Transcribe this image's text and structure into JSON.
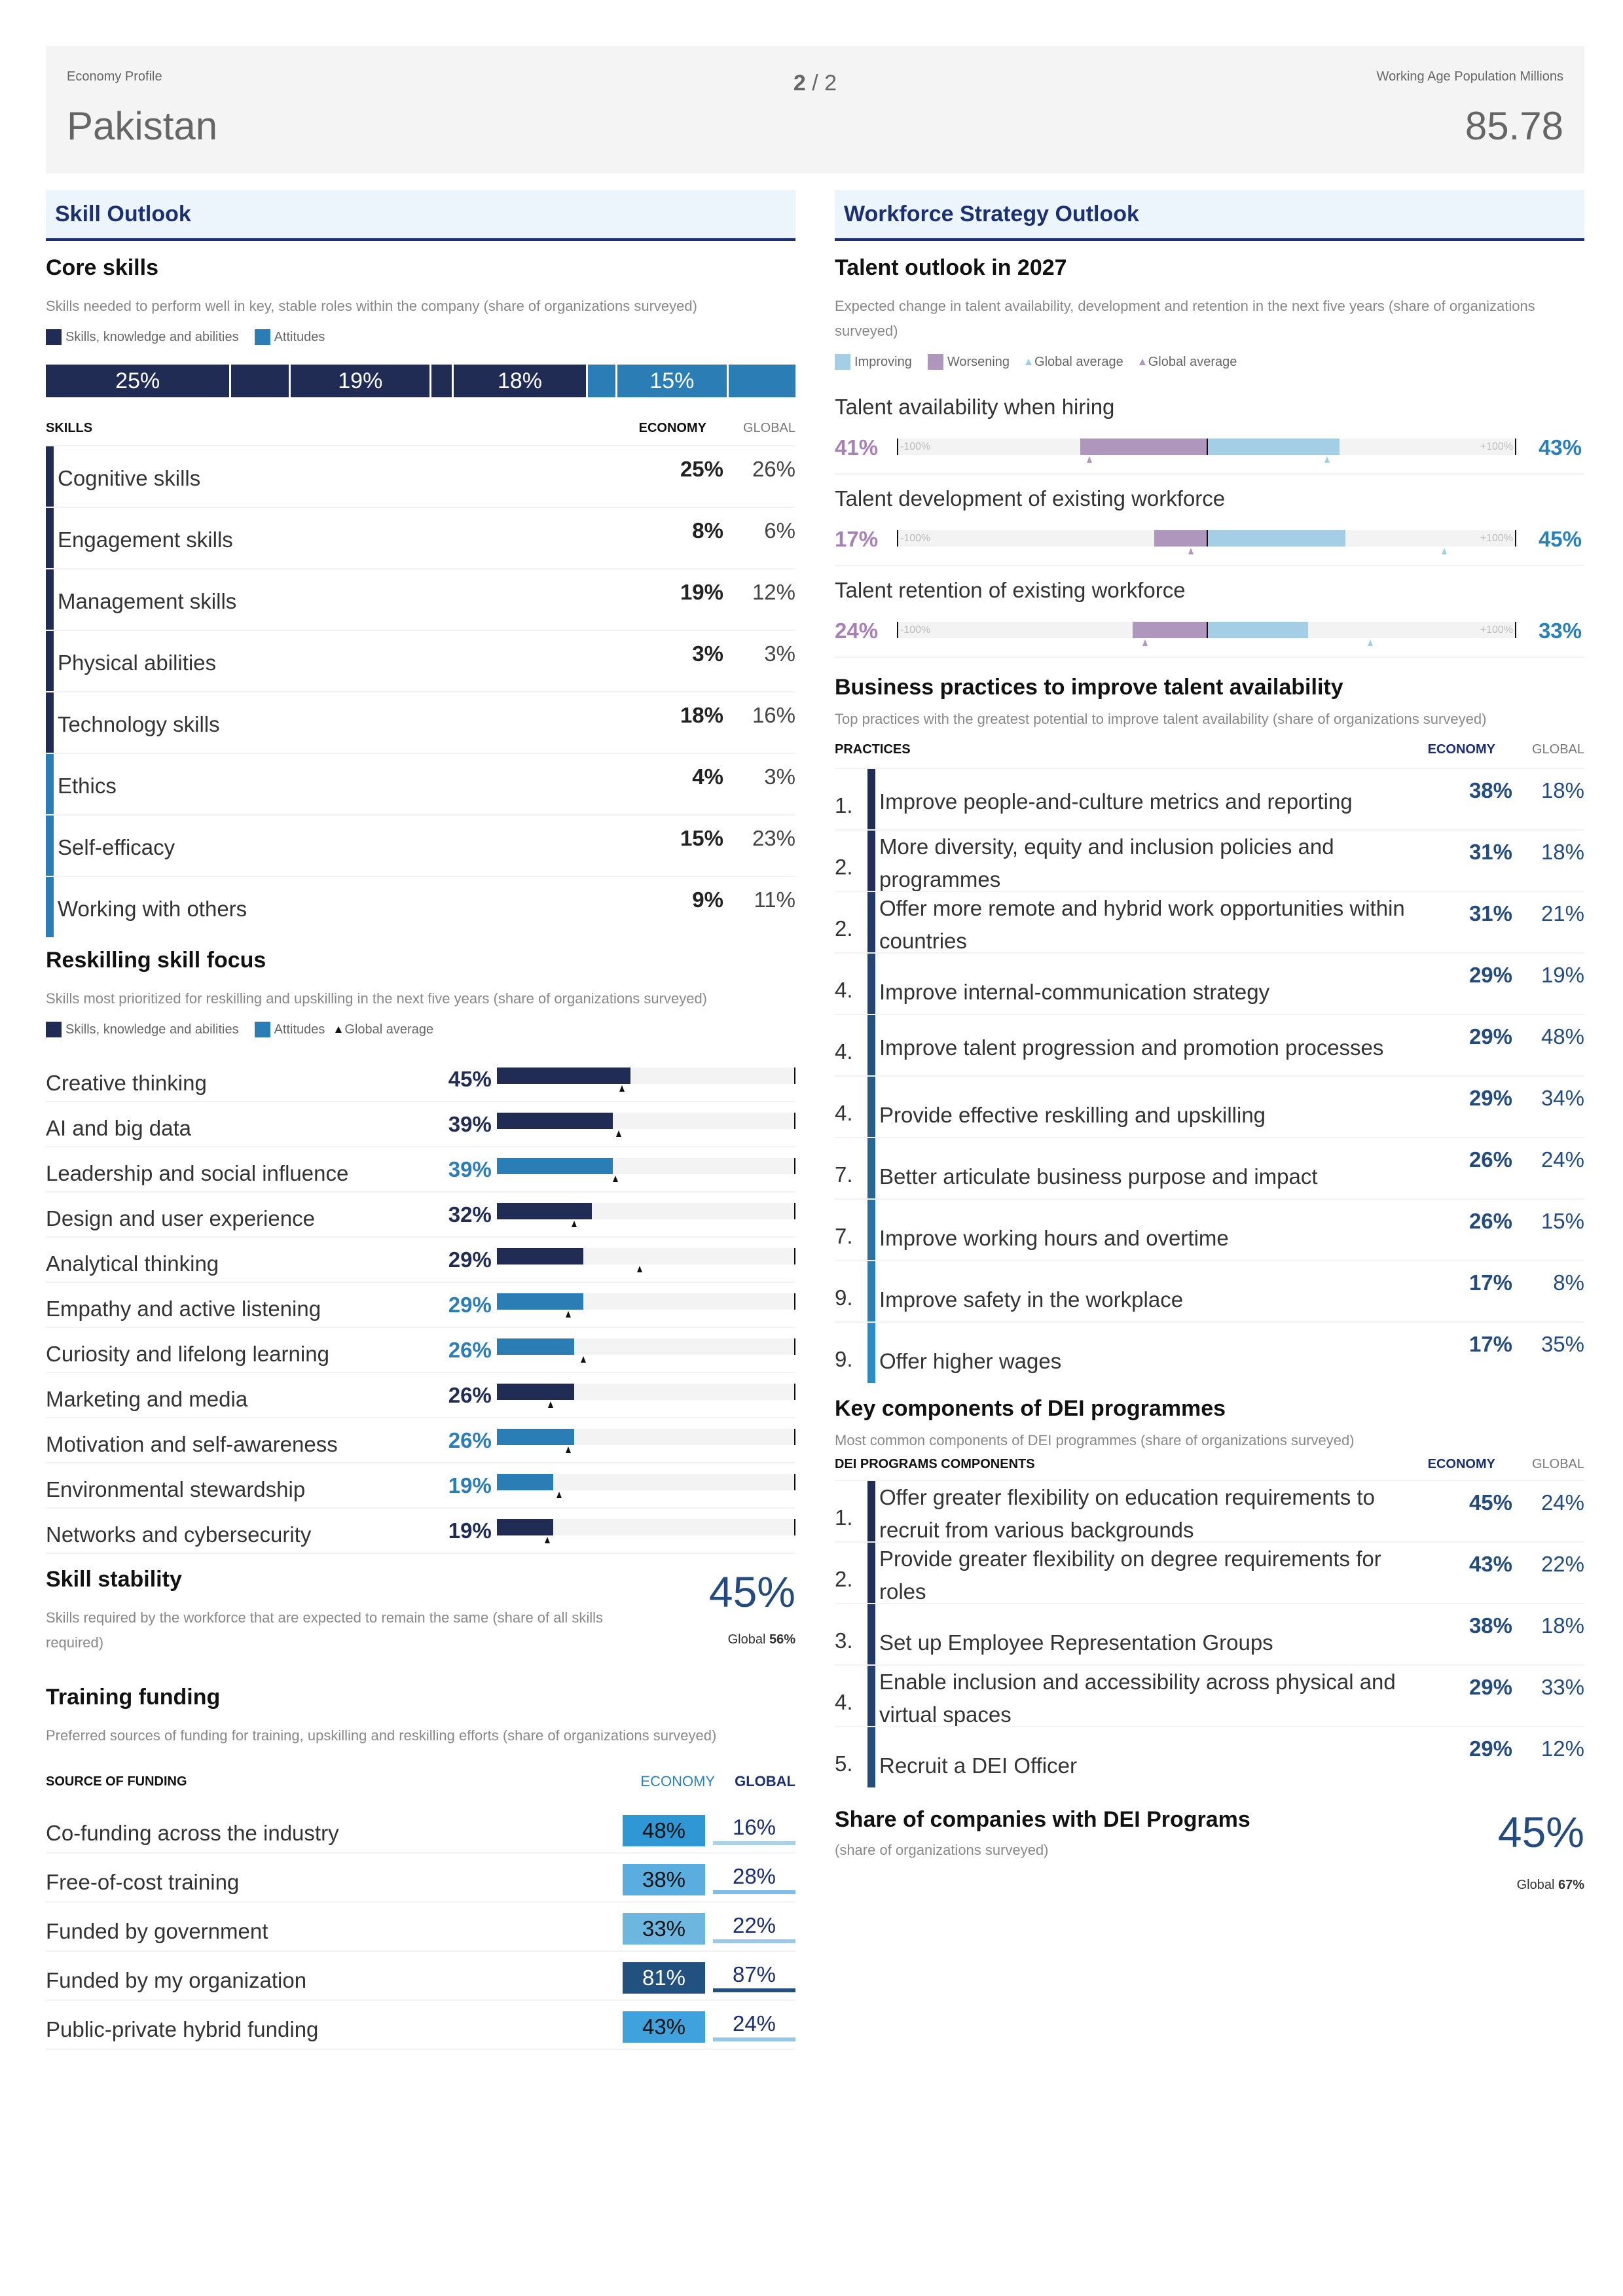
{
  "header": {
    "eyebrow_left": "Economy Profile",
    "country": "Pakistan",
    "page_current": "2",
    "page_sep": " / ",
    "page_total": "2",
    "eyebrow_right": "Working Age Population Millions",
    "population": "85.78"
  },
  "colors": {
    "skills": "#202c54",
    "attitudes": "#2a7db5",
    "improving": "#a3cee6",
    "worsening": "#af96bd",
    "accent_blue": "#244b7e"
  },
  "skill_outlook": {
    "section_title": "Skill Outlook",
    "core": {
      "title": "Core skills",
      "subtitle": "Skills needed to perform well in key, stable roles within the company (share of organizations surveyed)",
      "legend": [
        "Skills, knowledge and abilities",
        "Attitudes"
      ],
      "col_skill": "SKILLS",
      "col_economy": "ECONOMY",
      "col_global": "GLOBAL",
      "rows": [
        {
          "label": "Cognitive skills",
          "economy": 25,
          "economy_label": "25%",
          "global_label": "26%",
          "category": "skills"
        },
        {
          "label": "Engagement skills",
          "economy": 8,
          "economy_label": "8%",
          "global_label": "6%",
          "category": "skills"
        },
        {
          "label": "Management skills",
          "economy": 19,
          "economy_label": "19%",
          "global_label": "12%",
          "category": "skills"
        },
        {
          "label": "Physical abilities",
          "economy": 3,
          "economy_label": "3%",
          "global_label": "3%",
          "category": "skills"
        },
        {
          "label": "Technology skills",
          "economy": 18,
          "economy_label": "18%",
          "global_label": "16%",
          "category": "skills"
        },
        {
          "label": "Ethics",
          "economy": 4,
          "economy_label": "4%",
          "global_label": "3%",
          "category": "attitudes"
        },
        {
          "label": "Self-efficacy",
          "economy": 15,
          "economy_label": "15%",
          "global_label": "23%",
          "category": "attitudes"
        },
        {
          "label": "Working with others",
          "economy": 9,
          "economy_label": "9%",
          "global_label": "11%",
          "category": "attitudes"
        }
      ],
      "stack_labels": [
        "25%",
        "",
        "19%",
        "",
        "18%",
        "",
        "15%",
        ""
      ]
    },
    "reskilling": {
      "title": "Reskilling skill focus",
      "subtitle": "Skills most prioritized for reskilling and upskilling in the next five years (share of organizations surveyed)",
      "legend": [
        "Skills, knowledge and abilities",
        "Attitudes",
        "Global average"
      ],
      "rows": [
        {
          "label": "Creative thinking",
          "value": 45,
          "value_label": "45%",
          "global": 42,
          "category": "skills"
        },
        {
          "label": "AI and big data",
          "value": 39,
          "value_label": "39%",
          "global": 41,
          "category": "skills"
        },
        {
          "label": "Leadership and social influence",
          "value": 39,
          "value_label": "39%",
          "global": 40,
          "category": "attitudes"
        },
        {
          "label": "Design and user experience",
          "value": 32,
          "value_label": "32%",
          "global": 26,
          "category": "skills"
        },
        {
          "label": "Analytical thinking",
          "value": 29,
          "value_label": "29%",
          "global": 48,
          "category": "skills"
        },
        {
          "label": "Empathy and active listening",
          "value": 29,
          "value_label": "29%",
          "global": 24,
          "category": "attitudes"
        },
        {
          "label": "Curiosity and lifelong learning",
          "value": 26,
          "value_label": "26%",
          "global": 29,
          "category": "attitudes"
        },
        {
          "label": "Marketing and media",
          "value": 26,
          "value_label": "26%",
          "global": 18,
          "category": "skills"
        },
        {
          "label": "Motivation and self-awareness",
          "value": 26,
          "value_label": "26%",
          "global": 24,
          "category": "attitudes"
        },
        {
          "label": "Environmental stewardship",
          "value": 19,
          "value_label": "19%",
          "global": 21,
          "category": "attitudes"
        },
        {
          "label": "Networks and cybersecurity",
          "value": 19,
          "value_label": "19%",
          "global": 17,
          "category": "skills"
        }
      ]
    },
    "stability": {
      "title": "Skill stability",
      "subtitle": "Skills required by the workforce that are expected to remain the same (share of all skills required)",
      "value": "45%",
      "global_prefix": "Global",
      "global_value": "56%"
    },
    "funding": {
      "title": "Training funding",
      "subtitle": "Preferred sources of funding for training, upskilling and reskilling efforts (share of organizations surveyed)",
      "col_source": "SOURCE OF FUNDING",
      "col_economy": "ECONOMY",
      "col_global": "GLOBAL",
      "rows": [
        {
          "label": "Co-funding across the industry",
          "economy": "48%",
          "global": "16%",
          "eco_color": "#2f98d4",
          "eco_text": "#111111",
          "glob_color": "#a9d1e8"
        },
        {
          "label": "Free-of-cost training",
          "economy": "38%",
          "global": "28%",
          "eco_color": "#5aaedf",
          "eco_text": "#111111",
          "glob_color": "#7fbde2"
        },
        {
          "label": "Funded by government",
          "economy": "33%",
          "global": "22%",
          "eco_color": "#6cb6e0",
          "eco_text": "#111111",
          "glob_color": "#99cae6"
        },
        {
          "label": "Funded by my organization",
          "economy": "81%",
          "global": "87%",
          "eco_color": "#22507f",
          "eco_text": "#ffffff",
          "glob_color": "#22507f"
        },
        {
          "label": "Public-private hybrid funding",
          "economy": "43%",
          "global": "24%",
          "eco_color": "#40a2dc",
          "eco_text": "#111111",
          "glob_color": "#95c8e6"
        }
      ]
    }
  },
  "workforce": {
    "section_title": "Workforce Strategy Outlook",
    "talent": {
      "title": "Talent outlook in 2027",
      "subtitle": "Expected change in talent availability, development and retention in the next five years (share of organizations surveyed)",
      "legend": [
        "Improving",
        "Worsening",
        "Global average",
        "Global average"
      ],
      "axis_min": "-100%",
      "axis_max": "+100%",
      "rows": [
        {
          "label": "Talent availability when hiring",
          "worsening": 41,
          "worsening_label": "41%",
          "improving": 43,
          "improving_label": "43%",
          "global_worsening": 38,
          "global_improving": 39
        },
        {
          "label": "Talent development of existing workforce",
          "worsening": 17,
          "worsening_label": "17%",
          "improving": 45,
          "improving_label": "45%",
          "global_worsening": 5,
          "global_improving": 77
        },
        {
          "label": "Talent retention of existing workforce",
          "worsening": 24,
          "worsening_label": "24%",
          "improving": 33,
          "improving_label": "33%",
          "global_worsening": 20,
          "global_improving": 53
        }
      ]
    },
    "practices": {
      "title": "Business practices to improve talent availability",
      "subtitle": "Top practices with the greatest potential to improve talent availability (share of organizations surveyed)",
      "col_practice": "PRACTICES",
      "col_economy": "ECONOMY",
      "col_global": "GLOBAL",
      "rows": [
        {
          "rank": "1.",
          "label": "Improve people-and-culture metrics and reporting",
          "economy": "38%",
          "global": "18%",
          "color": "#202c54"
        },
        {
          "rank": "2.",
          "label": "More diversity, equity and inclusion policies and programmes",
          "economy": "31%",
          "global": "18%",
          "color": "#222f5d"
        },
        {
          "rank": "2.",
          "label": "Offer more remote and hybrid work opportunities within countries",
          "economy": "31%",
          "global": "21%",
          "color": "#233a68"
        },
        {
          "rank": "4.",
          "label": "Improve internal-communication strategy",
          "economy": "29%",
          "global": "19%",
          "color": "#244573"
        },
        {
          "rank": "4.",
          "label": "Improve talent progression and promotion processes",
          "economy": "29%",
          "global": "48%",
          "color": "#25507e"
        },
        {
          "rank": "4.",
          "label": "Provide effective reskilling and upskilling",
          "economy": "29%",
          "global": "34%",
          "color": "#265b8a"
        },
        {
          "rank": "7.",
          "label": "Better articulate business purpose and impact",
          "economy": "26%",
          "global": "24%",
          "color": "#276796"
        },
        {
          "rank": "7.",
          "label": "Improve working hours and overtime",
          "economy": "26%",
          "global": "15%",
          "color": "#2873a4"
        },
        {
          "rank": "9.",
          "label": "Improve safety in the workplace",
          "economy": "17%",
          "global": "8%",
          "color": "#2980b6"
        },
        {
          "rank": "9.",
          "label": "Offer higher wages",
          "economy": "17%",
          "global": "35%",
          "color": "#2a8cc8"
        }
      ]
    },
    "dei": {
      "title": "Key components of DEI programmes",
      "subtitle": "Most common components of DEI programmes (share of organizations surveyed)",
      "col_component": "DEI PROGRAMS COMPONENTS",
      "col_economy": "ECONOMY",
      "col_global": "GLOBAL",
      "rows": [
        {
          "rank": "1.",
          "label": "Offer greater flexibility on education requirements to recruit from various backgrounds",
          "economy": "45%",
          "global": "24%",
          "color": "#202c54"
        },
        {
          "rank": "2.",
          "label": "Provide greater flexibility on degree requirements for roles",
          "economy": "43%",
          "global": "22%",
          "color": "#212f5b"
        },
        {
          "rank": "3.",
          "label": "Set up Employee Representation Groups",
          "economy": "38%",
          "global": "18%",
          "color": "#223765"
        },
        {
          "rank": "4.",
          "label": "Enable inclusion and accessibility across physical and virtual spaces",
          "economy": "29%",
          "global": "33%",
          "color": "#23406f"
        },
        {
          "rank": "5.",
          "label": "Recruit a DEI Officer",
          "economy": "29%",
          "global": "12%",
          "color": "#254c7c"
        }
      ]
    },
    "dei_share": {
      "title": "Share of companies with DEI Programs",
      "subtitle": "(share of organizations surveyed)",
      "value": "45%",
      "global_prefix": "Global",
      "global_value": "67%"
    }
  }
}
